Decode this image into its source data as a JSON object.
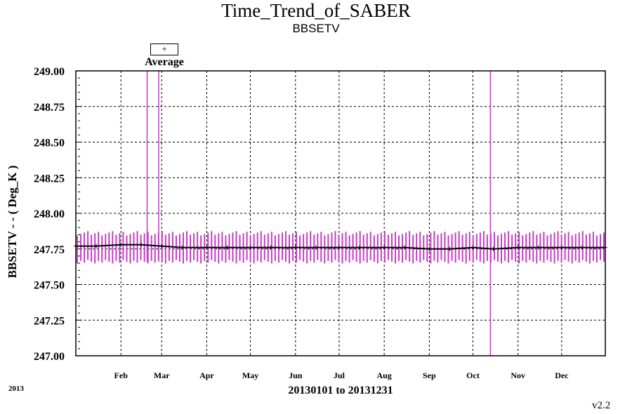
{
  "chart_data": {
    "type": "line",
    "title": "Time_Trend_of_SABER",
    "subtitle": "BBSETV",
    "xlabel": "20130101 to 20131231",
    "ylabel": "BBSETV  - - ( Deg_K )",
    "year_label": "2013",
    "version": "v2.2",
    "legend": {
      "symbol": "+",
      "label": "Average"
    },
    "ylim": [
      247.0,
      249.0
    ],
    "xlim": [
      "2013-01-01",
      "2013-12-31"
    ],
    "y_ticks": [
      "247.00",
      "247.25",
      "247.50",
      "247.75",
      "248.00",
      "248.25",
      "248.50",
      "248.75",
      "249.00"
    ],
    "x_ticks": [
      "Feb",
      "Mar",
      "Apr",
      "May",
      "Jun",
      "Jul",
      "Aug",
      "Sep",
      "Oct",
      "Nov",
      "Dec"
    ],
    "grid": true,
    "colors": {
      "range": "#c040c0",
      "average": "#000000"
    },
    "series": [
      {
        "name": "Average",
        "x": [
          "2013-01-01",
          "2013-01-15",
          "2013-02-01",
          "2013-02-15",
          "2013-03-01",
          "2013-03-15",
          "2013-04-01",
          "2013-04-15",
          "2013-05-01",
          "2013-05-15",
          "2013-06-01",
          "2013-06-15",
          "2013-07-01",
          "2013-07-15",
          "2013-08-01",
          "2013-08-15",
          "2013-09-01",
          "2013-09-15",
          "2013-10-01",
          "2013-10-15",
          "2013-11-01",
          "2013-11-15",
          "2013-12-01",
          "2013-12-15",
          "2013-12-31"
        ],
        "y": [
          247.77,
          247.77,
          247.78,
          247.78,
          247.77,
          247.76,
          247.76,
          247.76,
          247.76,
          247.76,
          247.76,
          247.76,
          247.76,
          247.76,
          247.76,
          247.76,
          247.75,
          247.75,
          247.76,
          247.75,
          247.76,
          247.76,
          247.76,
          247.76,
          247.76
        ]
      }
    ],
    "range_band": {
      "min": 247.66,
      "max": 247.86
    },
    "spikes": [
      {
        "x": "2013-02-19",
        "min": 247.66,
        "max": 249.0
      },
      {
        "x": "2013-02-27",
        "min": 247.66,
        "max": 249.0
      },
      {
        "x": "2013-10-13",
        "min": 247.0,
        "max": 249.0
      }
    ]
  }
}
